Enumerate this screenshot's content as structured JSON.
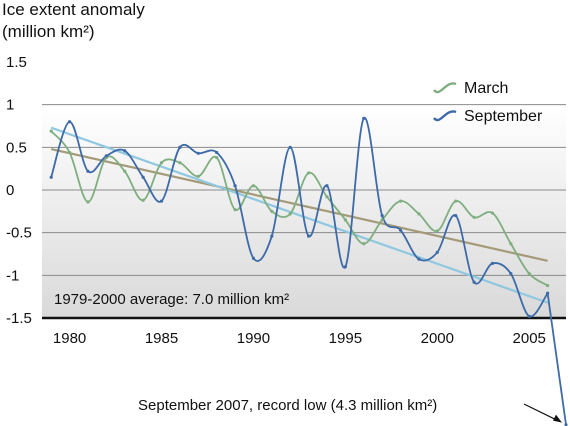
{
  "chart_data": {
    "type": "line",
    "ylabel_line1": "Ice extent anomaly",
    "ylabel_line2": "(million km²)",
    "ylim": [
      -1.5,
      1.5
    ],
    "yticks": [
      "1.5",
      "1",
      "0.5",
      "0",
      "-0.5",
      "-1",
      "-1.5"
    ],
    "xlim": [
      1978.5,
      2007
    ],
    "xticks": [
      "1980",
      "1985",
      "1990",
      "1995",
      "2000",
      "2005"
    ],
    "grid": true,
    "legend_position": "top-right",
    "baseline_note": "1979-2000 average: 7.0 million km²",
    "record_note": "September 2007, record low (4.3 million km²)",
    "colors": {
      "march": "#7fae7f",
      "september": "#3d6aa8",
      "march_trend": "#a49a78",
      "september_trend": "#8fc8e0"
    },
    "series": [
      {
        "name": "March",
        "x": [
          1979,
          1980,
          1981,
          1982,
          1983,
          1984,
          1985,
          1986,
          1987,
          1988,
          1989,
          1990,
          1991,
          1992,
          1993,
          1994,
          1995,
          1996,
          1997,
          1998,
          1999,
          2000,
          2001,
          2002,
          2003,
          2004,
          2005,
          2006
        ],
        "values": [
          0.69,
          0.44,
          -0.14,
          0.38,
          0.22,
          -0.12,
          0.32,
          0.32,
          0.16,
          0.38,
          -0.23,
          0.05,
          -0.25,
          -0.28,
          0.2,
          -0.08,
          -0.35,
          -0.63,
          -0.35,
          -0.13,
          -0.28,
          -0.48,
          -0.13,
          -0.32,
          -0.27,
          -0.63,
          -0.98,
          -1.12
        ]
      },
      {
        "name": "September",
        "x": [
          1979,
          1980,
          1981,
          1982,
          1983,
          1984,
          1985,
          1986,
          1987,
          1988,
          1989,
          1990,
          1991,
          1992,
          1993,
          1994,
          1995,
          1996,
          1997,
          1998,
          1999,
          2000,
          2001,
          2002,
          2003,
          2004,
          2005,
          2006,
          2007
        ],
        "values": [
          0.15,
          0.8,
          0.22,
          0.4,
          0.46,
          0.15,
          -0.13,
          0.5,
          0.43,
          0.44,
          0.05,
          -0.8,
          -0.54,
          0.5,
          -0.54,
          0.05,
          -0.9,
          0.84,
          -0.3,
          -0.47,
          -0.81,
          -0.73,
          -0.3,
          -1.08,
          -0.86,
          -0.98,
          -1.48,
          -1.21,
          -2.75
        ]
      }
    ],
    "trends": [
      {
        "name": "March",
        "x": [
          1979,
          2006
        ],
        "values": [
          0.48,
          -0.83
        ]
      },
      {
        "name": "September",
        "x": [
          1979,
          2006
        ],
        "values": [
          0.73,
          -1.32
        ]
      }
    ]
  }
}
